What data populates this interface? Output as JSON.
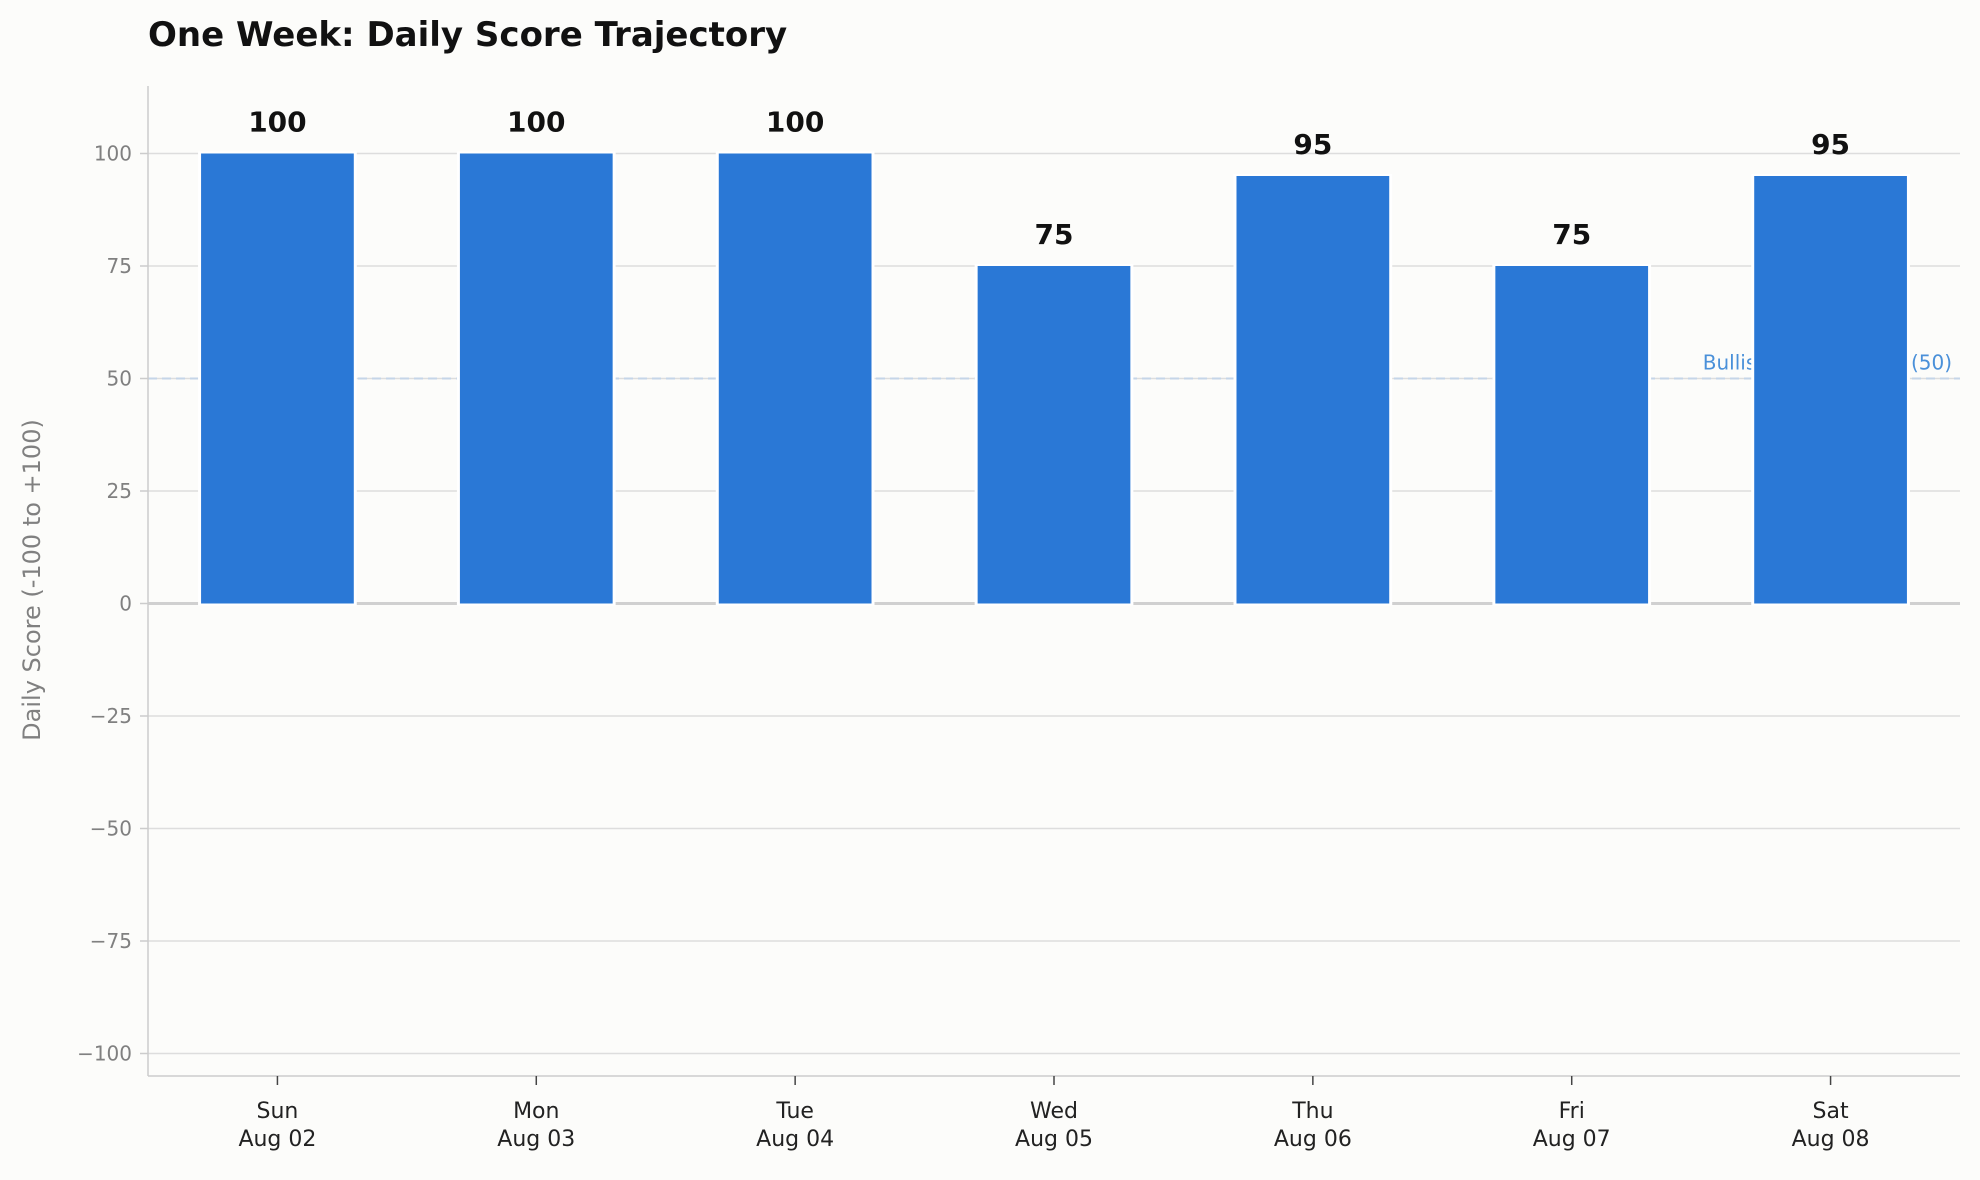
{
  "chart_data": {
    "type": "bar",
    "title": "One Week: Daily Score Trajectory",
    "xlabel": "",
    "ylabel": "Daily Score (-100 to +100)",
    "categories": [
      {
        "day": "Sun",
        "date": "Aug 02"
      },
      {
        "day": "Mon",
        "date": "Aug 03"
      },
      {
        "day": "Tue",
        "date": "Aug 04"
      },
      {
        "day": "Wed",
        "date": "Aug 05"
      },
      {
        "day": "Thu",
        "date": "Aug 06"
      },
      {
        "day": "Fri",
        "date": "Aug 07"
      },
      {
        "day": "Sat",
        "date": "Aug 08"
      }
    ],
    "values": [
      100,
      100,
      100,
      75,
      95,
      75,
      95
    ],
    "ylim": [
      -105,
      115
    ],
    "yticks": [
      100,
      75,
      50,
      25,
      0,
      -25,
      -50,
      -75,
      -100
    ],
    "ytick_labels": [
      "100",
      "75",
      "50",
      "25",
      "0",
      "−25",
      "−50",
      "−75",
      "−100"
    ],
    "reference_line": {
      "value": 50,
      "label": "Bullish Expectations (50)"
    },
    "grid": true,
    "bar_color": "#2a78d6",
    "reference_color": "#4a90d9"
  }
}
